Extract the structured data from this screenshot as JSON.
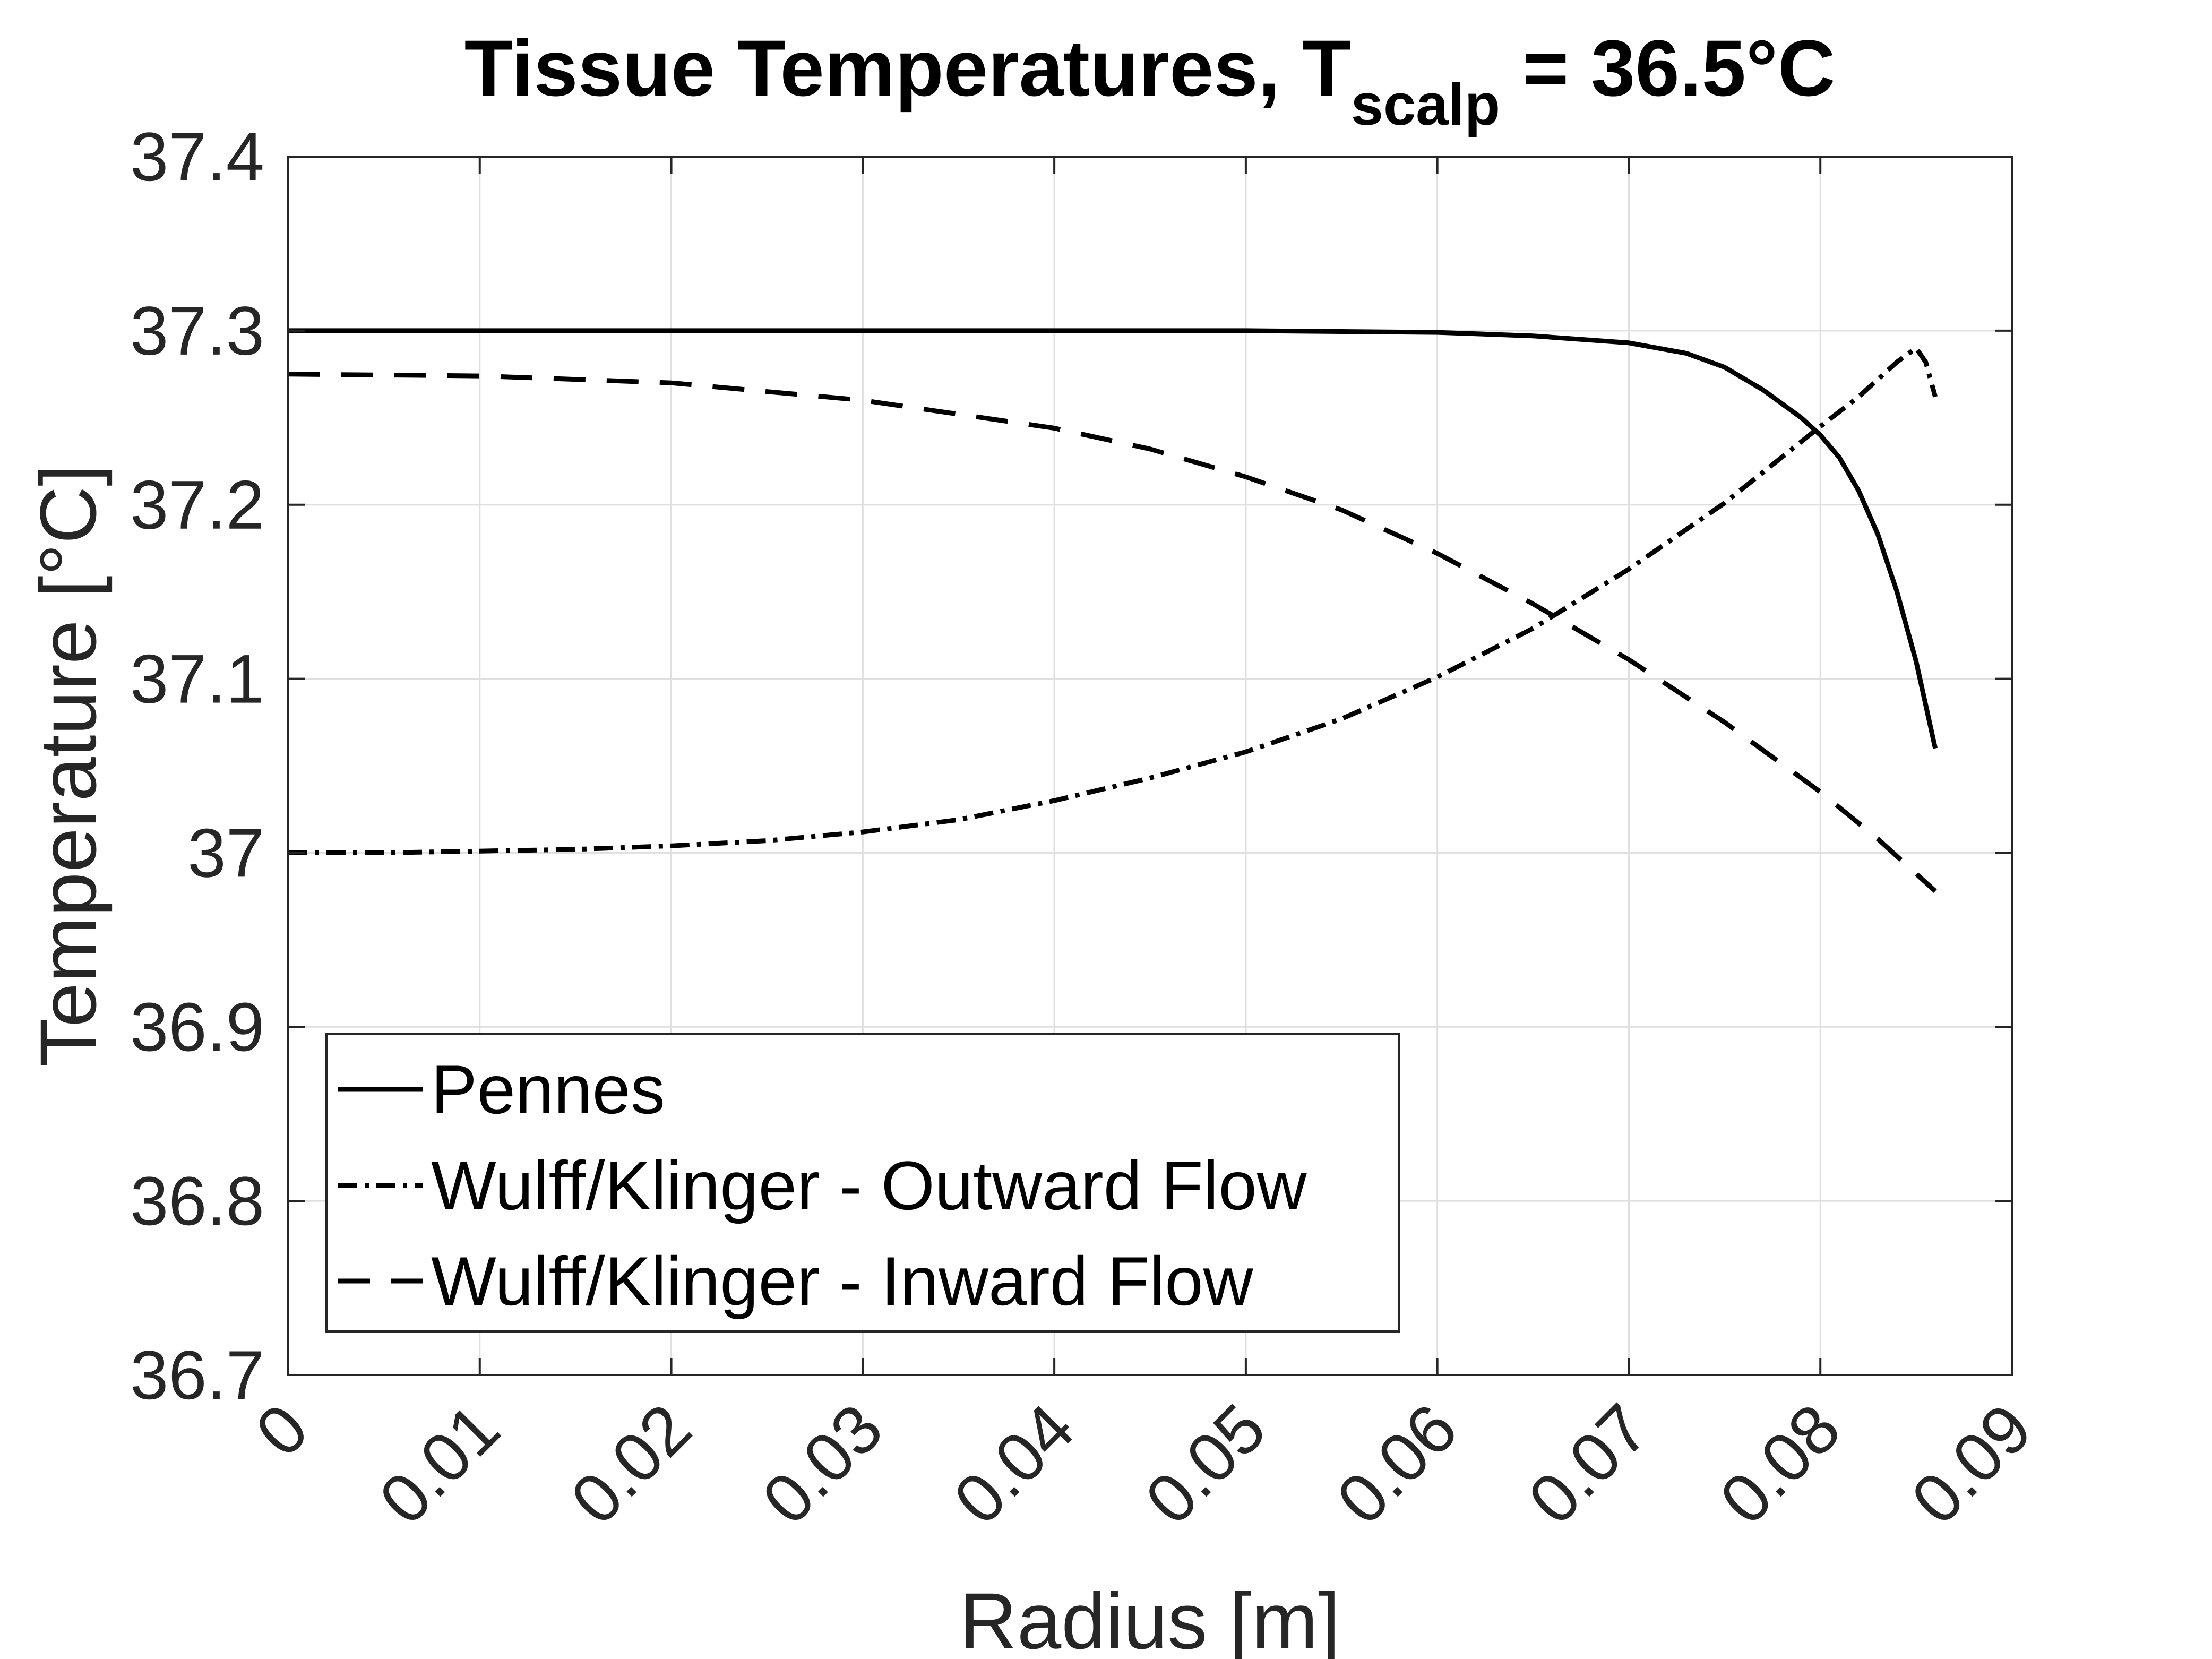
{
  "chart_data": {
    "type": "line",
    "title": {
      "main": "Tissue Temperatures, T",
      "subscript": "scalp",
      "suffix": " = 36.5°C"
    },
    "xlabel": "Radius [m]",
    "ylabel": "Temperature [°C]",
    "xlim": [
      0,
      0.09
    ],
    "ylim": [
      36.7,
      37.4
    ],
    "x_ticks": [
      0,
      0.01,
      0.02,
      0.03,
      0.04,
      0.05,
      0.06,
      0.07,
      0.08,
      0.09
    ],
    "x_tick_labels": [
      "0",
      "0.01",
      "0.02",
      "0.03",
      "0.04",
      "0.05",
      "0.06",
      "0.07",
      "0.08",
      "0.09"
    ],
    "y_ticks": [
      36.7,
      36.8,
      36.9,
      37.0,
      37.1,
      37.2,
      37.3,
      37.4
    ],
    "y_tick_labels": [
      "36.7",
      "36.8",
      "36.9",
      "37",
      "37.1",
      "37.2",
      "37.3",
      "37.4"
    ],
    "grid": true,
    "legend_position": "bottom-left",
    "series": [
      {
        "name": "Pennes",
        "style": "solid",
        "color": "#000000",
        "x": [
          0,
          0.01,
          0.02,
          0.03,
          0.04,
          0.05,
          0.06,
          0.065,
          0.07,
          0.073,
          0.075,
          0.077,
          0.079,
          0.08,
          0.081,
          0.082,
          0.083,
          0.084,
          0.085,
          0.086
        ],
        "y": [
          37.3,
          37.3,
          37.3,
          37.3,
          37.3,
          37.3,
          37.299,
          37.297,
          37.293,
          37.287,
          37.279,
          37.266,
          37.25,
          37.24,
          37.227,
          37.208,
          37.183,
          37.15,
          37.11,
          37.06
        ]
      },
      {
        "name": "Wulff/Klinger - Outward Flow",
        "style": "dashdot",
        "color": "#000000",
        "x": [
          0,
          0.005,
          0.01,
          0.015,
          0.02,
          0.025,
          0.03,
          0.035,
          0.04,
          0.045,
          0.05,
          0.055,
          0.06,
          0.065,
          0.07,
          0.075,
          0.08,
          0.082,
          0.084,
          0.085,
          0.0855,
          0.086
        ],
        "y": [
          37.0,
          37.0,
          37.001,
          37.002,
          37.004,
          37.007,
          37.012,
          37.019,
          37.03,
          37.043,
          37.058,
          37.077,
          37.101,
          37.129,
          37.163,
          37.201,
          37.245,
          37.262,
          37.282,
          37.29,
          37.282,
          37.262
        ]
      },
      {
        "name": "Wulff/Klinger - Inward Flow",
        "style": "dashed",
        "color": "#000000",
        "x": [
          0,
          0.01,
          0.02,
          0.03,
          0.04,
          0.045,
          0.05,
          0.055,
          0.06,
          0.065,
          0.07,
          0.075,
          0.08,
          0.083,
          0.085,
          0.086
        ],
        "y": [
          37.275,
          37.274,
          37.27,
          37.26,
          37.244,
          37.232,
          37.216,
          37.197,
          37.172,
          37.143,
          37.111,
          37.075,
          37.035,
          37.008,
          36.988,
          36.978
        ]
      }
    ]
  }
}
